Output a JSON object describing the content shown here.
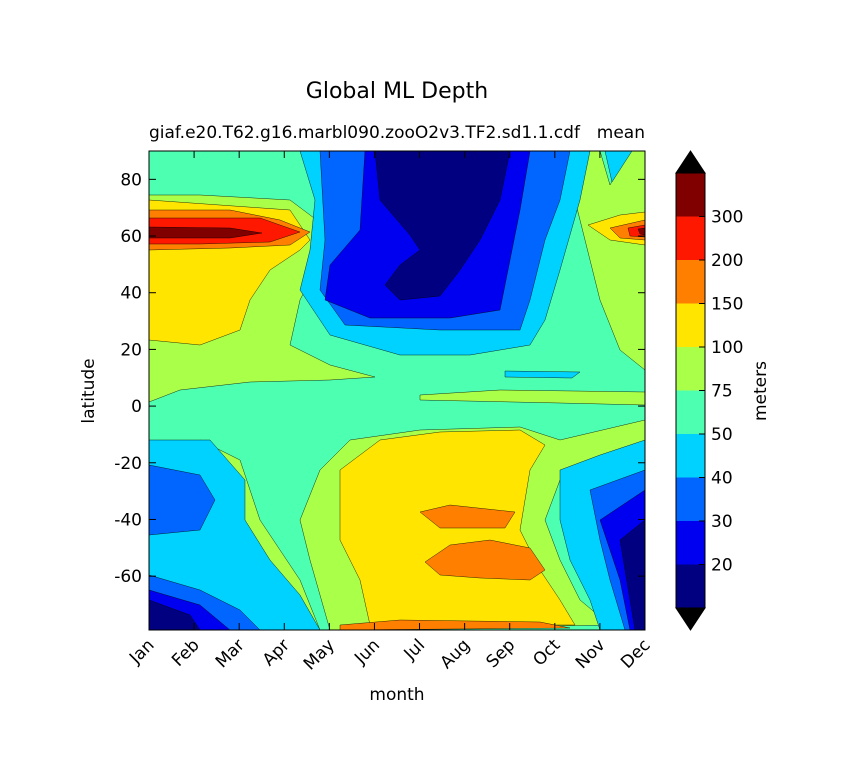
{
  "chart_data": {
    "type": "contourf",
    "title": "Global ML Depth",
    "subtitle_left": "giaf.e20.T62.g16.marbl090.zooO2v3.TF2.sd1.1.cdf",
    "subtitle_right": "mean",
    "x_label": "month",
    "y_label": "latitude",
    "categories": [
      "Jan",
      "Feb",
      "Mar",
      "Apr",
      "May",
      "Jun",
      "Jul",
      "Aug",
      "Sep",
      "Oct",
      "Nov",
      "Dec"
    ],
    "ylim": [
      -79,
      90
    ],
    "yticks": [
      -60,
      -40,
      -20,
      0,
      20,
      40,
      60,
      80
    ],
    "colorbar": {
      "label": "meters",
      "ticks": [
        20,
        30,
        40,
        50,
        75,
        100,
        150,
        200,
        300
      ],
      "colors": [
        "#000080",
        "#0000f0",
        "#0066ff",
        "#00d2ff",
        "#4dffb0",
        "#aaff48",
        "#ffe500",
        "#ff8000",
        "#ff1800",
        "#800000"
      ],
      "extend_color": "#000000"
    }
  }
}
